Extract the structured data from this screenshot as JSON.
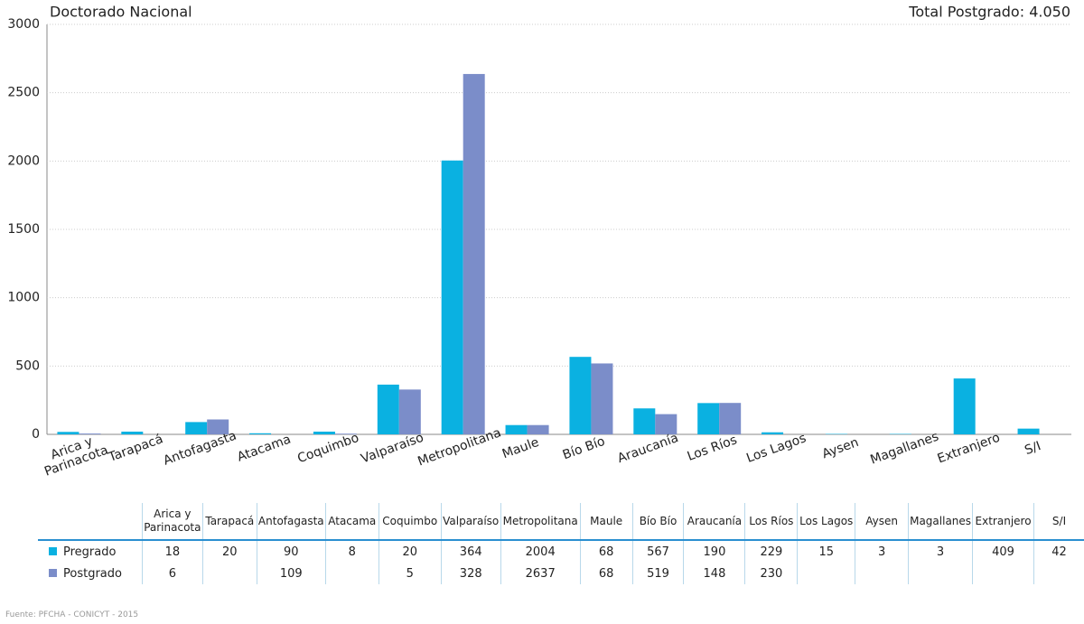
{
  "chart_data": {
    "type": "bar",
    "title": "Doctorado Nacional",
    "annotation": "Total Postgrado: 4.050",
    "source": "Fuente: PFCHA - CONICYT - 2015",
    "categories": [
      "Arica y Parinacota",
      "Tarapacá",
      "Antofagasta",
      "Atacama",
      "Coquimbo",
      "Valparaíso",
      "Metropolitana",
      "Maule",
      "Bío Bío",
      "Araucanía",
      "Los Ríos",
      "Los Lagos",
      "Aysen",
      "Magallanes",
      "Extranjero",
      "S/I"
    ],
    "series": [
      {
        "name": "Pregrado",
        "color": "#0ab1e1",
        "values": [
          18,
          20,
          90,
          8,
          20,
          364,
          2004,
          68,
          567,
          190,
          229,
          15,
          3,
          3,
          409,
          42
        ]
      },
      {
        "name": "Postgrado",
        "color": "#7b8dc9",
        "values": [
          6,
          null,
          109,
          null,
          5,
          328,
          2637,
          68,
          519,
          148,
          230,
          null,
          null,
          null,
          null,
          null
        ]
      }
    ],
    "ylim": [
      0,
      3000
    ],
    "yticks": [
      0,
      500,
      1000,
      1500,
      2000,
      2500,
      3000
    ],
    "grid": true
  }
}
